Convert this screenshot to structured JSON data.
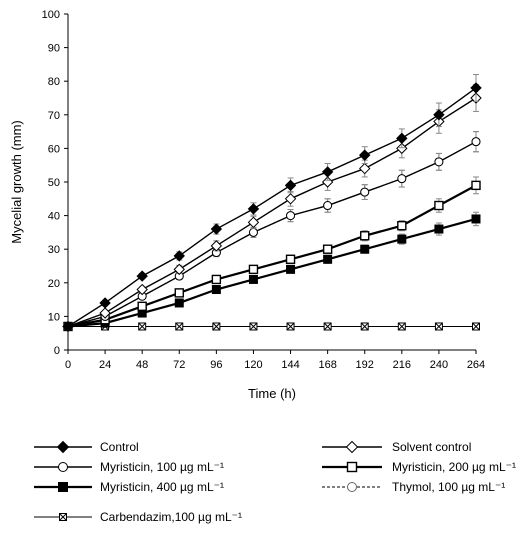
{
  "chart_data": {
    "type": "line",
    "title": "",
    "xlabel": "Time (h)",
    "ylabel": "Mycelial growth (mm)",
    "x": [
      0,
      24,
      48,
      72,
      96,
      120,
      144,
      168,
      192,
      216,
      240,
      264
    ],
    "xlim": [
      0,
      264
    ],
    "ylim": [
      0,
      100
    ],
    "y_ticks": [
      0,
      10,
      20,
      30,
      40,
      50,
      60,
      70,
      80,
      90,
      100
    ],
    "x_ticks": [
      0,
      24,
      48,
      72,
      96,
      120,
      144,
      168,
      192,
      216,
      240,
      264
    ],
    "grid": false,
    "legend_position": "bottom",
    "series": [
      {
        "name": "Control",
        "marker": "filled-diamond",
        "line": "solid",
        "values": [
          7,
          14,
          22,
          28,
          36,
          42,
          49,
          53,
          58,
          63,
          70,
          78
        ],
        "errors": [
          0,
          0.5,
          0.8,
          1.2,
          1.5,
          1.8,
          2.2,
          2.5,
          2.5,
          2.8,
          3.5,
          4
        ]
      },
      {
        "name": "Solvent control",
        "marker": "open-diamond",
        "line": "solid",
        "values": [
          7,
          11,
          18,
          24,
          31,
          38,
          45,
          50,
          54,
          60,
          68,
          75
        ],
        "errors": [
          0,
          0.5,
          0.8,
          1.2,
          1.5,
          1.8,
          2.2,
          2.5,
          2.5,
          2.8,
          3.5,
          4
        ]
      },
      {
        "name": "Myristicin, 100 µg mL⁻¹",
        "marker": "open-circle",
        "line": "solid",
        "values": [
          7,
          10,
          16,
          22,
          29,
          35,
          40,
          43,
          47,
          51,
          56,
          62
        ],
        "errors": [
          0,
          0.5,
          0.8,
          1,
          1.2,
          1.5,
          1.8,
          2,
          2.2,
          2.5,
          2.5,
          3
        ]
      },
      {
        "name": "Myristicin, 200 µg mL⁻¹",
        "marker": "open-square",
        "line": "solid-bold",
        "values": [
          7,
          9,
          13,
          17,
          21,
          24,
          27,
          30,
          34,
          37,
          43,
          49
        ],
        "errors": [
          0,
          0.5,
          0.8,
          1,
          1,
          1,
          1.2,
          1.2,
          1.5,
          1.5,
          2,
          2.5
        ]
      },
      {
        "name": "Myristicin, 400 µg mL⁻¹",
        "marker": "filled-square",
        "line": "solid-bold",
        "values": [
          7,
          8,
          11,
          14,
          18,
          21,
          24,
          27,
          30,
          33,
          36,
          39
        ],
        "errors": [
          0,
          0.5,
          0.8,
          1,
          1,
          1,
          1,
          1.2,
          1.2,
          1.5,
          1.8,
          2
        ]
      },
      {
        "name": "Thymol, 100 µg mL⁻¹",
        "marker": "open-circle-gray",
        "line": "dashed",
        "values": [
          7,
          10,
          16,
          22,
          29,
          35,
          40,
          43,
          47,
          51,
          56,
          62
        ],
        "errors": [
          0,
          0.5,
          0.8,
          1,
          1.2,
          1.5,
          1.8,
          2,
          2.2,
          2.5,
          2.5,
          3
        ]
      },
      {
        "name": "Carbendazim,100 µg mL⁻¹",
        "marker": "x-box",
        "line": "solid-thin",
        "values": [
          7,
          7,
          7,
          7,
          7,
          7,
          7,
          7,
          7,
          7,
          7,
          7
        ],
        "errors": [
          0,
          0,
          0,
          0,
          0,
          0,
          0,
          0,
          0,
          0,
          0,
          0
        ]
      }
    ],
    "legend": {
      "left": [
        {
          "series": 0,
          "label": "Control"
        },
        {
          "series": 2,
          "label": "Myristicin, 100 µg mL⁻¹"
        },
        {
          "series": 4,
          "label": "Myristicin, 400 µg mL⁻¹"
        },
        {
          "series": 6,
          "label": "Carbendazim,100 µg mL⁻¹"
        }
      ],
      "right": [
        {
          "series": 1,
          "label": "Solvent control"
        },
        {
          "series": 3,
          "label": "Myristicin, 200 µg mL⁻¹"
        },
        {
          "series": 5,
          "label": "Thymol, 100 µg mL⁻¹"
        }
      ]
    }
  }
}
